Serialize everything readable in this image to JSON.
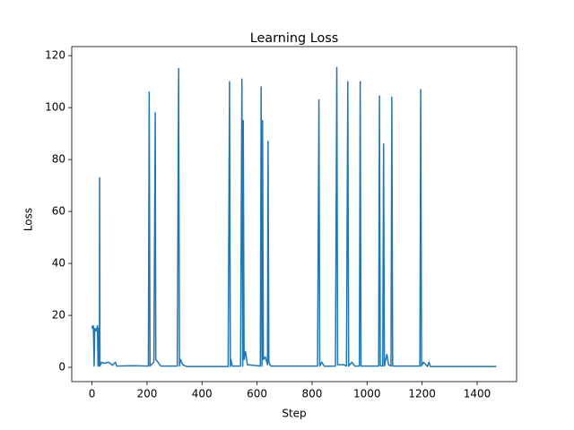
{
  "chart_data": {
    "type": "line",
    "title": "Learning Loss",
    "xlabel": "Step",
    "ylabel": "Loss",
    "color": "#1f77b4",
    "x": [
      0,
      2,
      5,
      8,
      10,
      15,
      20,
      22,
      25,
      27,
      28,
      29,
      35,
      45,
      60,
      75,
      85,
      90,
      150,
      205,
      208,
      211,
      225,
      230,
      232,
      240,
      250,
      310,
      315,
      318,
      322,
      330,
      345,
      495,
      500,
      503,
      505,
      510,
      540,
      545,
      548,
      550,
      553,
      558,
      565,
      612,
      615,
      618,
      620,
      623,
      630,
      638,
      640,
      643,
      650,
      820,
      825,
      828,
      835,
      845,
      885,
      890,
      893,
      915,
      925,
      930,
      933,
      945,
      955,
      972,
      975,
      978,
      1000,
      1042,
      1045,
      1048,
      1057,
      1060,
      1063,
      1072,
      1078,
      1087,
      1090,
      1093,
      1192,
      1195,
      1198,
      1205,
      1220,
      1225,
      1230,
      1470
    ],
    "values": [
      16,
      15,
      16,
      0.5,
      15,
      14,
      16,
      0.5,
      15,
      0.5,
      73,
      0.5,
      2,
      1.5,
      2,
      0.8,
      2,
      0.5,
      0.6,
      0.5,
      106,
      0.5,
      2,
      98,
      3,
      2,
      0.5,
      0.5,
      115,
      0.5,
      3,
      1,
      0.3,
      0.3,
      110,
      0.3,
      3,
      0.5,
      0.5,
      111,
      0.5,
      95,
      3,
      6,
      1,
      0.5,
      108,
      0.5,
      95,
      3,
      4,
      1,
      87,
      2,
      0.5,
      0.5,
      103,
      0.5,
      2,
      0.4,
      0.5,
      115.5,
      1,
      1,
      0.5,
      110,
      0.5,
      2,
      0.5,
      0.5,
      110,
      0.5,
      0.5,
      0.5,
      104.5,
      0.6,
      0.5,
      86,
      0.5,
      5,
      1,
      0.5,
      104,
      0.5,
      0.5,
      107,
      0.5,
      2,
      0.3,
      2,
      0.3,
      0.3
    ],
    "xlim": [
      -73.5,
      1543.5
    ],
    "ylim": [
      -5.5,
      123.5
    ],
    "xticks": [
      0,
      200,
      400,
      600,
      800,
      1000,
      1200,
      1400
    ],
    "yticks": [
      0,
      20,
      40,
      60,
      80,
      100,
      120
    ]
  }
}
